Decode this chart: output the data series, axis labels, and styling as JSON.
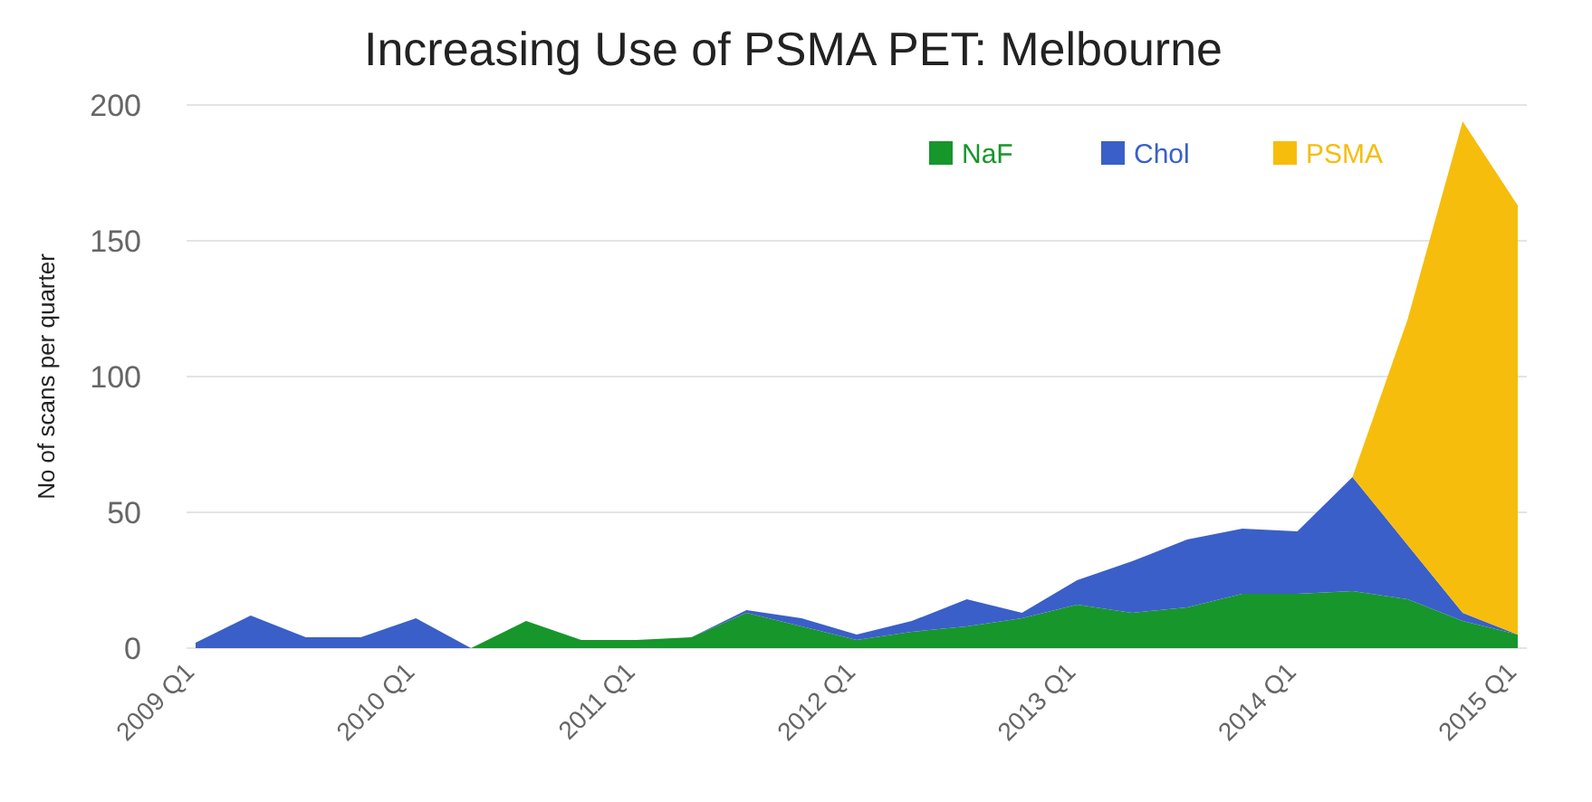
{
  "chart_data": {
    "type": "area",
    "stacked": true,
    "title": "Increasing Use of PSMA PET: Melbourne",
    "ylabel": "No of scans per quarter",
    "categories": [
      "2009 Q1",
      null,
      null,
      null,
      "2010 Q1",
      null,
      null,
      null,
      "2011 Q1",
      null,
      null,
      null,
      "2012 Q1",
      null,
      null,
      null,
      "2013 Q1",
      null,
      null,
      null,
      "2014 Q1",
      null,
      null,
      null,
      "2015 Q1"
    ],
    "series": [
      {
        "name": "NaF",
        "color": "#17962b",
        "values": [
          0,
          0,
          0,
          0,
          0,
          0,
          10,
          3,
          3,
          4,
          13,
          8,
          3,
          6,
          8,
          11,
          16,
          13,
          15,
          20,
          20,
          21,
          18,
          10,
          5
        ]
      },
      {
        "name": "Chol",
        "color": "#3a5fc8",
        "values": [
          2,
          12,
          4,
          4,
          11,
          0,
          0,
          0,
          0,
          0,
          1,
          3,
          2,
          4,
          10,
          2,
          9,
          19,
          25,
          24,
          23,
          42,
          20,
          3,
          0
        ]
      },
      {
        "name": "PSMA",
        "color": "#f6bd0c",
        "values": [
          0,
          0,
          0,
          0,
          0,
          0,
          0,
          0,
          0,
          0,
          0,
          0,
          0,
          0,
          0,
          0,
          0,
          0,
          0,
          0,
          0,
          0,
          83,
          181,
          158
        ]
      }
    ],
    "ylim": [
      0,
      200
    ],
    "yticks": [
      0,
      50,
      100,
      150,
      200
    ],
    "grid": "y",
    "legend": "top right"
  }
}
